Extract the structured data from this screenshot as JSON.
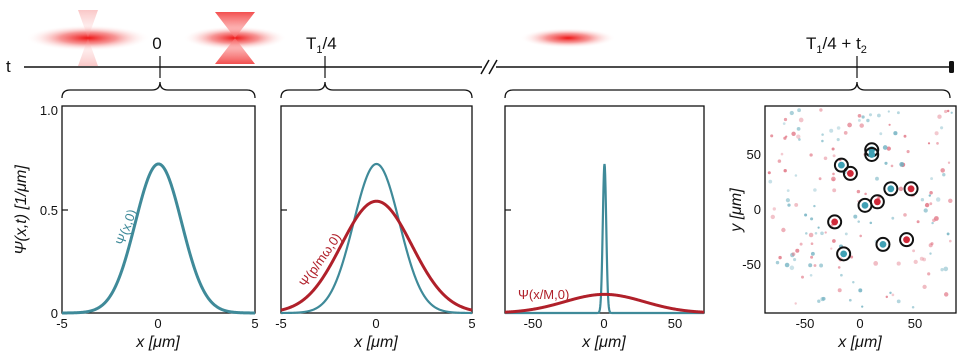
{
  "colors": {
    "teal": "#3f8a99",
    "crimson": "#b0202a",
    "beam": "#ef1f1f",
    "axis": "#111111"
  },
  "timeline": {
    "t_label": "t",
    "events": [
      {
        "label": "0"
      },
      {
        "label": "T₁/4",
        "base": "T",
        "sub": "1",
        "tail": "/4"
      },
      {
        "label": "T₁/4 + t₂",
        "base": "T",
        "sub": "1",
        "tail": "/4 + t",
        "sub2": "2"
      }
    ]
  },
  "panels": {
    "p1": {
      "ylabel": "Ψ(x,t) [1/μm]",
      "xlabel": "x [μm]",
      "xticks": [
        "-5",
        "0",
        "5"
      ],
      "yticks": [
        "0",
        "0.5",
        "1.0"
      ],
      "curve_label": "Ψ(x,0)"
    },
    "p2": {
      "xlabel": "x [μm]",
      "xticks": [
        "-5",
        "0",
        "5"
      ],
      "curve_label": "Ψ(p/mω,0)"
    },
    "p3": {
      "xlabel": "x [μm]",
      "xticks": [
        "-50",
        "0",
        "50"
      ],
      "curve_label": "Ψ(x/M,0)"
    },
    "p4": {
      "xlabel": "x [μm]",
      "ylabel": "y [μm]",
      "xticks": [
        "-50",
        "0",
        "50"
      ],
      "yticks": [
        "50",
        "0",
        "-50"
      ]
    }
  },
  "chart_data": [
    {
      "type": "line",
      "xlim": [
        -5,
        5
      ],
      "ylim": [
        0,
        1.0
      ],
      "series": [
        {
          "name": "Ψ(x,0)",
          "sigma": 1.2,
          "peak": 0.72,
          "color": "teal"
        }
      ]
    },
    {
      "type": "line",
      "xlim": [
        -5,
        5
      ],
      "ylim": [
        0,
        1.0
      ],
      "series": [
        {
          "sigma": 1.2,
          "peak": 0.72,
          "color": "teal"
        },
        {
          "name": "Ψ(p/mω,0)",
          "sigma": 1.85,
          "peak": 0.54,
          "color": "crimson"
        }
      ]
    },
    {
      "type": "line",
      "xlim": [
        -70,
        70
      ],
      "ylim": [
        0,
        1.0
      ],
      "series": [
        {
          "sigma": 1.2,
          "peak": 0.72,
          "color": "teal"
        },
        {
          "name": "Ψ(x/M,0)",
          "sigma": 28,
          "peak": 0.09,
          "color": "crimson"
        }
      ]
    },
    {
      "type": "scatter",
      "xlim": [
        -90,
        80
      ],
      "ylim": [
        -90,
        85
      ],
      "circled_atoms": [
        {
          "x": 5,
          "y": 48,
          "c": "teal"
        },
        {
          "x": 5,
          "y": 44,
          "c": "teal"
        },
        {
          "x": -22,
          "y": 35,
          "c": "teal"
        },
        {
          "x": -14,
          "y": 28,
          "c": "crimson"
        },
        {
          "x": 22,
          "y": 15,
          "c": "teal"
        },
        {
          "x": 40,
          "y": 15,
          "c": "crimson"
        },
        {
          "x": 10,
          "y": 4,
          "c": "crimson"
        },
        {
          "x": -1,
          "y": 1,
          "c": "teal"
        },
        {
          "x": -28,
          "y": -13,
          "c": "crimson"
        },
        {
          "x": 36,
          "y": -28,
          "c": "crimson"
        },
        {
          "x": 15,
          "y": -32,
          "c": "teal"
        },
        {
          "x": -20,
          "y": -40,
          "c": "teal"
        }
      ]
    }
  ]
}
